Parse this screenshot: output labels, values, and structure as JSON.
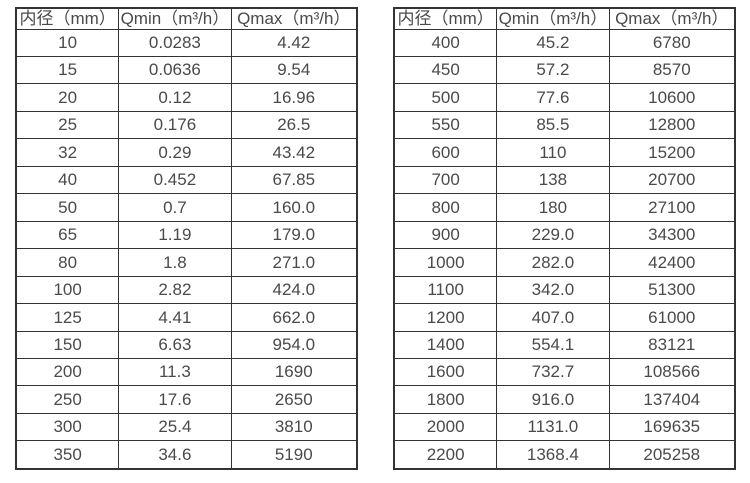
{
  "colors": {
    "background": "#ffffff",
    "text": "#4a4a4a",
    "border": "#333333"
  },
  "tables": [
    {
      "columns": [
        "内径（mm）",
        "Qmin（m³/h）",
        "Qmax（m³/h）"
      ],
      "rows": [
        [
          "10",
          "0.0283",
          "4.42"
        ],
        [
          "15",
          "0.0636",
          "9.54"
        ],
        [
          "20",
          "0.12",
          "16.96"
        ],
        [
          "25",
          "0.176",
          "26.5"
        ],
        [
          "32",
          "0.29",
          "43.42"
        ],
        [
          "40",
          "0.452",
          "67.85"
        ],
        [
          "50",
          "0.7",
          "160.0"
        ],
        [
          "65",
          "1.19",
          "179.0"
        ],
        [
          "80",
          "1.8",
          "271.0"
        ],
        [
          "100",
          "2.82",
          "424.0"
        ],
        [
          "125",
          "4.41",
          "662.0"
        ],
        [
          "150",
          "6.63",
          "954.0"
        ],
        [
          "200",
          "11.3",
          "1690"
        ],
        [
          "250",
          "17.6",
          "2650"
        ],
        [
          "300",
          "25.4",
          "3810"
        ],
        [
          "350",
          "34.6",
          "5190"
        ]
      ]
    },
    {
      "columns": [
        "内径（mm）",
        "Qmin（m³/h）",
        "Qmax（m³/h）"
      ],
      "rows": [
        [
          "400",
          "45.2",
          "6780"
        ],
        [
          "450",
          "57.2",
          "8570"
        ],
        [
          "500",
          "77.6",
          "10600"
        ],
        [
          "550",
          "85.5",
          "12800"
        ],
        [
          "600",
          "110",
          "15200"
        ],
        [
          "700",
          "138",
          "20700"
        ],
        [
          "800",
          "180",
          "27100"
        ],
        [
          "900",
          "229.0",
          "34300"
        ],
        [
          "1000",
          "282.0",
          "42400"
        ],
        [
          "1100",
          "342.0",
          "51300"
        ],
        [
          "1200",
          "407.0",
          "61000"
        ],
        [
          "1400",
          "554.1",
          "83121"
        ],
        [
          "1600",
          "732.7",
          "108566"
        ],
        [
          "1800",
          "916.0",
          "137404"
        ],
        [
          "2000",
          "1131.0",
          "169635"
        ],
        [
          "2200",
          "1368.4",
          "205258"
        ]
      ]
    }
  ]
}
